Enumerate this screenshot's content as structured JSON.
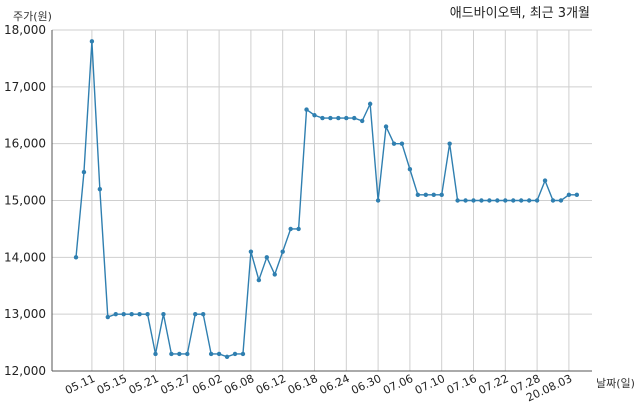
{
  "chart_data": {
    "type": "line",
    "title": "애드바이오텍, 최근 3개월",
    "ylabel": "주가(원)",
    "xlabel": "날짜(일)",
    "ylim": [
      12000,
      18000
    ],
    "yticks": [
      12000,
      13000,
      14000,
      15000,
      16000,
      17000,
      18000
    ],
    "ytick_labels": [
      "12,000",
      "13,000",
      "14,000",
      "15,000",
      "16,000",
      "17,000",
      "18,000"
    ],
    "grid": true,
    "xtick_labels": [
      "05.11",
      "05.15",
      "05.21",
      "05.27",
      "06.02",
      "06.08",
      "06.12",
      "06.18",
      "06.24",
      "06.30",
      "07.06",
      "07.10",
      "07.16",
      "07.22",
      "07.28",
      "20.08.03"
    ],
    "xtick_indices": [
      2,
      6,
      10,
      14,
      18,
      22,
      26,
      30,
      34,
      38,
      42,
      46,
      50,
      54,
      58,
      62
    ],
    "values": [
      14000,
      15500,
      17800,
      15200,
      12950,
      13000,
      13000,
      13000,
      13000,
      13000,
      12300,
      13000,
      12300,
      12300,
      12300,
      13000,
      13000,
      12300,
      12300,
      12250,
      12300,
      12300,
      14100,
      13600,
      14000,
      13700,
      14100,
      14500,
      14500,
      16600,
      16500,
      16450,
      16450,
      16450,
      16450,
      16450,
      16400,
      16700,
      15000,
      16300,
      16000,
      16000,
      15550,
      15100,
      15100,
      15100,
      15100,
      16000,
      15000,
      15000,
      15000,
      15000,
      15000,
      15000,
      15000,
      15000,
      15000,
      15000,
      15000,
      15350,
      15000,
      15000,
      15100,
      15100
    ]
  }
}
